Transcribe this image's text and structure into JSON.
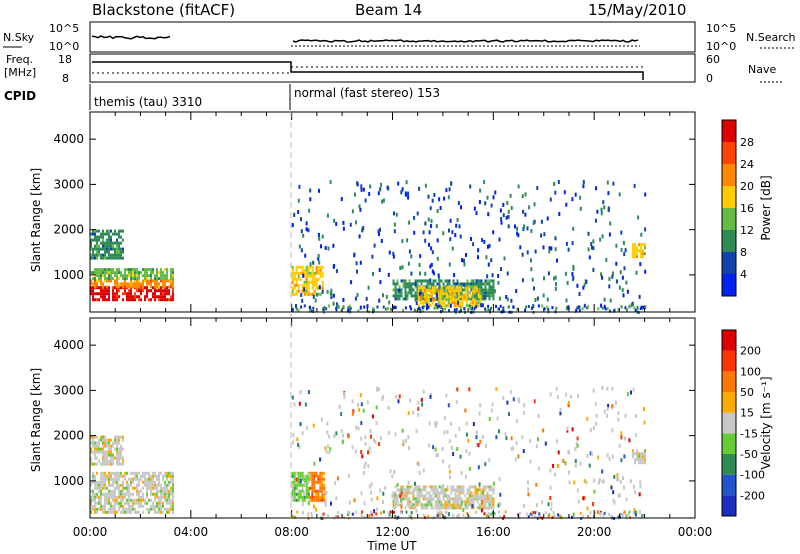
{
  "header": {
    "title": "Blackstone (fitACF)",
    "beam": "Beam 14",
    "date": "15/May/2010"
  },
  "status_panel": {
    "nsky_label": "N.Sky",
    "nsky_ticks": [
      "10^5",
      "10^0"
    ],
    "nsearch_label": "N.Search",
    "nsearch_ticks": [
      "10^5",
      "10^0"
    ],
    "freq_label_1": "Freq.",
    "freq_label_2": "[MHz]",
    "freq_ticks": [
      "18",
      "8"
    ],
    "nave_label": "Nave",
    "nave_ticks": [
      "60",
      "0"
    ],
    "cpid_label": "CPID",
    "cpid_modes": [
      {
        "name": "themis (tau) 3310",
        "start_hour": 0,
        "end_hour": 8
      },
      {
        "name": "normal (fast stereo) 153",
        "start_hour": 8,
        "end_hour": 22
      }
    ]
  },
  "power_colorbar": {
    "label": "Power [dB]",
    "ticks": [
      "4",
      "8",
      "12",
      "16",
      "20",
      "24",
      "28"
    ],
    "colors": [
      "#0022ee",
      "#1144aa",
      "#2e8b57",
      "#66bb44",
      "#ffcc00",
      "#ff8800",
      "#ff4400",
      "#dd0000"
    ]
  },
  "velocity_colorbar": {
    "label": "Velocity [m s⁻¹]",
    "ticks": [
      "200",
      "100",
      "50",
      "15",
      "-15",
      "-50",
      "-100",
      "-200"
    ],
    "colors": [
      "#1a2fbd",
      "#2255cc",
      "#2e8b57",
      "#66cc33",
      "#c8c8c8",
      "#ffaa00",
      "#ff7700",
      "#ff3300",
      "#dd0000"
    ]
  },
  "chart_data": [
    {
      "type": "heatmap",
      "title": "Power",
      "ylabel": "Slant Range [km]",
      "xlabel": "Time UT",
      "x_ticks": [
        "00:00",
        "04:00",
        "08:00",
        "12:00",
        "16:00",
        "20:00",
        "00:00"
      ],
      "y_ticks": [
        1000,
        2000,
        3000,
        4000
      ],
      "xlim_hours": [
        0,
        24
      ],
      "ylim_km": [
        180,
        4600
      ],
      "regions": [
        {
          "t0": 0.0,
          "t1": 3.3,
          "r0": 450,
          "r1": 750,
          "level": 7
        },
        {
          "t0": 0.0,
          "t1": 3.3,
          "r0": 750,
          "r1": 900,
          "level": 5
        },
        {
          "t0": 0.0,
          "t1": 3.3,
          "r0": 900,
          "r1": 1150,
          "level": 3
        },
        {
          "t0": 0.0,
          "t1": 1.3,
          "r0": 1400,
          "r1": 2000,
          "level": 2
        },
        {
          "t0": 8.0,
          "t1": 9.2,
          "r0": 600,
          "r1": 1200,
          "level": 4
        },
        {
          "t0": 12.0,
          "t1": 16.0,
          "r0": 500,
          "r1": 900,
          "level": 2
        },
        {
          "t0": 13.0,
          "t1": 15.5,
          "r0": 350,
          "r1": 750,
          "level": 4
        },
        {
          "t0": 21.5,
          "t1": 22.0,
          "r0": 1400,
          "r1": 1700,
          "level": 4
        }
      ]
    },
    {
      "type": "heatmap",
      "title": "Velocity",
      "ylabel": "Slant Range [km]",
      "xlabel": "Time UT",
      "x_ticks": [
        "00:00",
        "04:00",
        "08:00",
        "12:00",
        "16:00",
        "20:00",
        "00:00"
      ],
      "y_ticks": [
        1000,
        2000,
        3000,
        4000
      ],
      "xlim_hours": [
        0,
        24
      ],
      "ylim_km": [
        180,
        4600
      ],
      "regions": [
        {
          "t0": 0.0,
          "t1": 3.3,
          "r0": 300,
          "r1": 1200,
          "level": 4
        },
        {
          "t0": 0.0,
          "t1": 1.3,
          "r0": 1400,
          "r1": 2000,
          "level": 4
        },
        {
          "t0": 8.0,
          "t1": 8.7,
          "r0": 550,
          "r1": 1200,
          "level": 3
        },
        {
          "t0": 8.7,
          "t1": 9.3,
          "r0": 550,
          "r1": 1200,
          "level": 6
        },
        {
          "t0": 12.0,
          "t1": 16.0,
          "r0": 400,
          "r1": 900,
          "level": 4
        },
        {
          "t0": 21.5,
          "t1": 22.0,
          "r0": 1400,
          "r1": 1700,
          "level": 4
        }
      ]
    }
  ],
  "x_axis_title": "Time UT"
}
